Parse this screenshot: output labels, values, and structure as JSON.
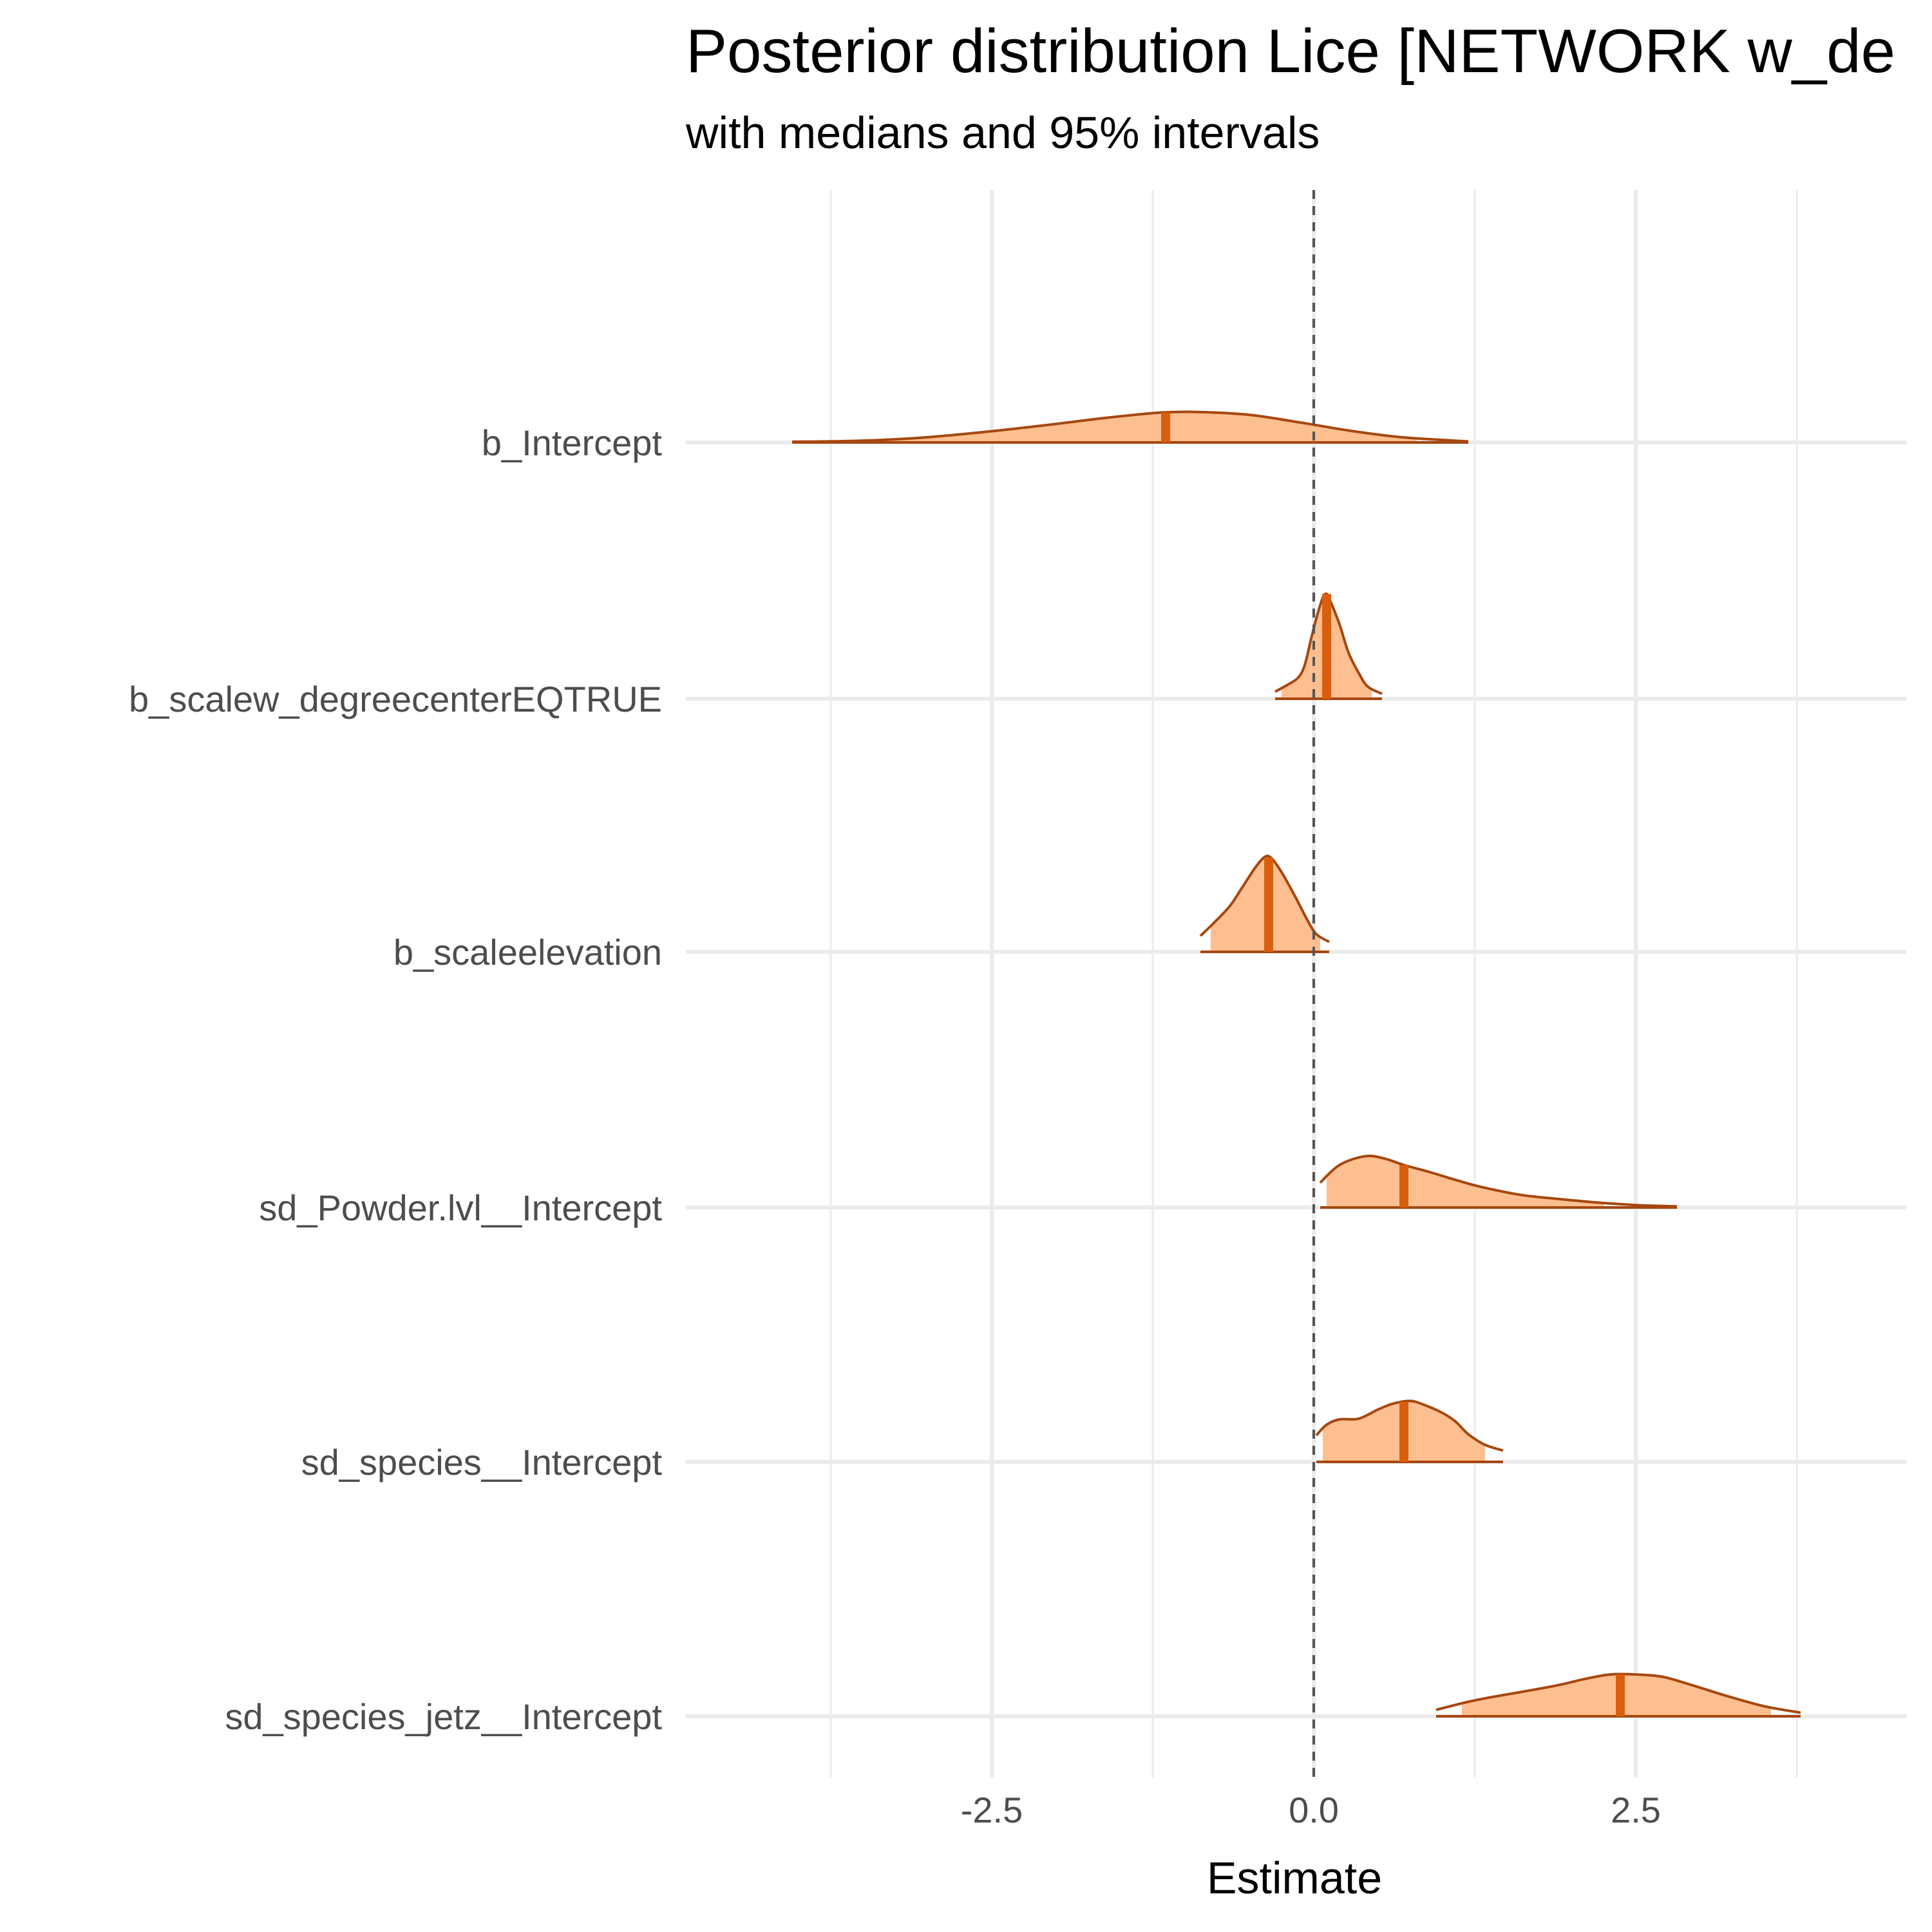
{
  "chart_data": {
    "type": "ridgeline",
    "title": "Posterior distribution Lice [NETWORK w_de",
    "subtitle": "with medians and 95% intervals",
    "xlabel": "Estimate",
    "ylabel": "",
    "xlim": [
      -4.7,
      4.7
    ],
    "x_ticks": [
      -2.5,
      0.0,
      2.5
    ],
    "x_tick_labels": [
      "-2.5",
      "0.0",
      "2.5"
    ],
    "x_minor_grid": [
      -3.75,
      -1.25,
      1.25,
      3.75
    ],
    "reference_line": 0.0,
    "grid": true,
    "colors": {
      "fill_light": "#fdbf8f",
      "fill_interval": "#fdbf8f",
      "outline": "#a6470f",
      "median": "#d95f0e",
      "grid": "#ebebeb",
      "reference": "#555555"
    },
    "parameters": [
      "b_Intercept",
      "b_scalew_degreecenterEQTRUE",
      "b_scaleelevation",
      "sd_Powder.lvl__Intercept",
      "sd_species__Intercept",
      "sd_species_jetz__Intercept"
    ],
    "series": [
      {
        "name": "b_Intercept",
        "median": -1.15,
        "ci95": [
          -3.4,
          0.8
        ],
        "range": [
          -4.05,
          1.2
        ],
        "density": [
          [
            -4.05,
            0.02
          ],
          [
            -3.6,
            0.04
          ],
          [
            -3.1,
            0.12
          ],
          [
            -2.6,
            0.28
          ],
          [
            -2.1,
            0.48
          ],
          [
            -1.6,
            0.7
          ],
          [
            -1.2,
            0.84
          ],
          [
            -0.9,
            0.86
          ],
          [
            -0.5,
            0.78
          ],
          [
            -0.1,
            0.56
          ],
          [
            0.3,
            0.32
          ],
          [
            0.7,
            0.14
          ],
          [
            1.2,
            0.03
          ]
        ]
      },
      {
        "name": "b_scalew_degreecenterEQTRUE",
        "median": 0.1,
        "ci95": [
          -0.25,
          0.45
        ],
        "range": [
          -0.3,
          0.53
        ],
        "density": [
          [
            -0.3,
            0.2
          ],
          [
            -0.2,
            0.4
          ],
          [
            -0.12,
            0.6
          ],
          [
            -0.07,
            0.95
          ],
          [
            -0.02,
            1.7
          ],
          [
            0.03,
            2.4
          ],
          [
            0.07,
            2.85
          ],
          [
            0.1,
            2.96
          ],
          [
            0.13,
            2.75
          ],
          [
            0.2,
            2.1
          ],
          [
            0.27,
            1.3
          ],
          [
            0.35,
            0.72
          ],
          [
            0.42,
            0.34
          ],
          [
            0.53,
            0.14
          ]
        ]
      },
      {
        "name": "b_scaleelevation",
        "median": -0.35,
        "ci95": [
          -0.8,
          0.05
        ],
        "range": [
          -0.88,
          0.12
        ],
        "density": [
          [
            -0.88,
            0.45
          ],
          [
            -0.78,
            0.8
          ],
          [
            -0.65,
            1.3
          ],
          [
            -0.55,
            1.85
          ],
          [
            -0.45,
            2.4
          ],
          [
            -0.38,
            2.68
          ],
          [
            -0.33,
            2.65
          ],
          [
            -0.25,
            2.25
          ],
          [
            -0.15,
            1.6
          ],
          [
            -0.05,
            0.9
          ],
          [
            0.02,
            0.5
          ],
          [
            0.12,
            0.28
          ]
        ]
      },
      {
        "name": "sd_Powder.lvl__Intercept",
        "median": 0.7,
        "ci95": [
          0.1,
          2.25
        ],
        "range": [
          0.05,
          2.82
        ],
        "density": [
          [
            0.05,
            0.7
          ],
          [
            0.2,
            1.2
          ],
          [
            0.4,
            1.45
          ],
          [
            0.55,
            1.38
          ],
          [
            0.7,
            1.2
          ],
          [
            0.9,
            1.0
          ],
          [
            1.1,
            0.78
          ],
          [
            1.3,
            0.58
          ],
          [
            1.6,
            0.36
          ],
          [
            1.9,
            0.24
          ],
          [
            2.2,
            0.14
          ],
          [
            2.5,
            0.07
          ],
          [
            2.82,
            0.03
          ]
        ]
      },
      {
        "name": "sd_species__Intercept",
        "median": 0.7,
        "ci95": [
          0.07,
          1.33
        ],
        "range": [
          0.02,
          1.47
        ],
        "density": [
          [
            0.02,
            0.75
          ],
          [
            0.1,
            1.05
          ],
          [
            0.2,
            1.2
          ],
          [
            0.35,
            1.22
          ],
          [
            0.5,
            1.48
          ],
          [
            0.62,
            1.65
          ],
          [
            0.75,
            1.72
          ],
          [
            0.85,
            1.62
          ],
          [
            1.0,
            1.38
          ],
          [
            1.1,
            1.14
          ],
          [
            1.2,
            0.78
          ],
          [
            1.33,
            0.48
          ],
          [
            1.47,
            0.32
          ]
        ]
      },
      {
        "name": "sd_species_jetz__Intercept",
        "median": 2.38,
        "ci95": [
          1.15,
          3.55
        ],
        "range": [
          0.95,
          3.78
        ],
        "density": [
          [
            0.95,
            0.18
          ],
          [
            1.25,
            0.45
          ],
          [
            1.6,
            0.68
          ],
          [
            1.9,
            0.88
          ],
          [
            2.1,
            1.05
          ],
          [
            2.3,
            1.18
          ],
          [
            2.5,
            1.18
          ],
          [
            2.7,
            1.12
          ],
          [
            2.9,
            0.92
          ],
          [
            3.2,
            0.58
          ],
          [
            3.5,
            0.28
          ],
          [
            3.78,
            0.1
          ]
        ]
      }
    ]
  }
}
